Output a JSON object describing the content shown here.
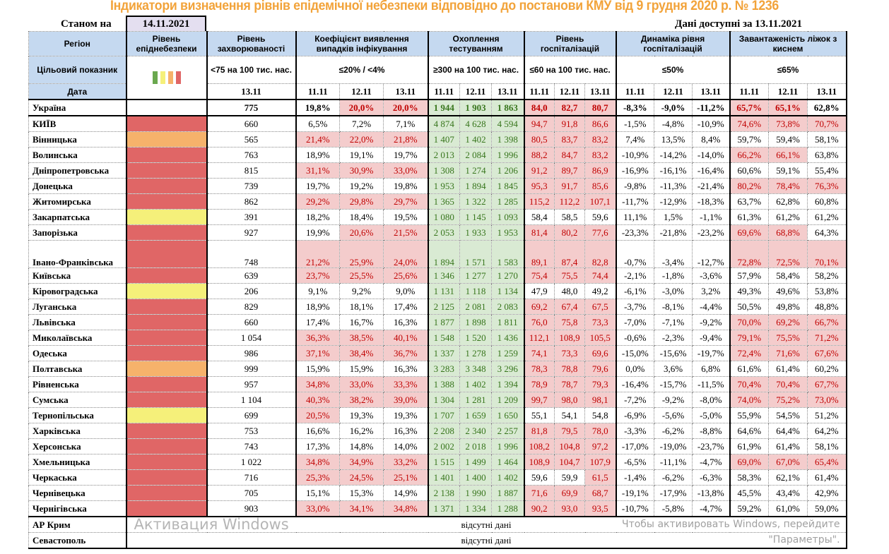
{
  "title": "Індикатори визначення рівнів епідемічної небезпеки відповідно до постанови КМУ від 9 грудня 2020 р. № 1236",
  "as_of_label": "Станом на",
  "as_of_date": "14.11.2021",
  "available_label": "Дані доступні за  13.11.2021",
  "headers": {
    "region": "Регіон",
    "level": "Рівень епіднебезпеки",
    "incidence": "Рівень захворюваності",
    "coef": "Коефіцієнт виявлення випадків інфікування",
    "testing": "Охоплення тестуванням",
    "hosp": "Рівень госпіталізацій",
    "dyn": "Динаміка рівня госпіталізацій",
    "beds": "Завантаженість ліжок з киснем"
  },
  "targets": {
    "label": "Цільовий показник",
    "incidence": "<75 на 100 тис. нас.",
    "coef": "≤20% / <4%",
    "testing": "≥300 на 100 тис. нас.",
    "hosp": "≤60 на 100 тис. нас.",
    "dyn": "≤50%",
    "beds": "≤65%"
  },
  "level_colors": {
    "green": "#6aa84f",
    "yellow": "#f5f07a",
    "orange": "#f6b26b",
    "red": "#e06666"
  },
  "dates": {
    "label": "Дата",
    "incidence": "13.11",
    "triple": [
      "11.11",
      "12.11",
      "13.11"
    ]
  },
  "ukraine": {
    "name": "Україна",
    "inc": "775",
    "coef": [
      "19,8%",
      "20,0%",
      "20,0%"
    ],
    "test": [
      "1 944",
      "1 903",
      "1 863"
    ],
    "hosp": [
      "84,0",
      "82,7",
      "80,7"
    ],
    "dyn": [
      "-8,3%",
      "-9,0%",
      "-11,2%"
    ],
    "beds": [
      "65,7%",
      "65,1%",
      "62,8%"
    ]
  },
  "rows": [
    {
      "name": "КИЇВ",
      "level": "red",
      "inc": "660",
      "coef": [
        "6,5%",
        "7,2%",
        "7,1%"
      ],
      "test": [
        "4 874",
        "4 628",
        "4 594"
      ],
      "hosp": [
        "94,7",
        "91,8",
        "86,6"
      ],
      "dyn": [
        "-1,5%",
        "-4,8%",
        "-10,9%"
      ],
      "beds": [
        "74,6%",
        "73,8%",
        "70,7%"
      ]
    },
    {
      "name": "Вінницька",
      "level": "orange",
      "inc": "565",
      "coef": [
        "21,4%",
        "22,0%",
        "21,8%"
      ],
      "test": [
        "1 407",
        "1 402",
        "1 398"
      ],
      "hosp": [
        "80,5",
        "83,7",
        "83,2"
      ],
      "dyn": [
        "7,4%",
        "13,5%",
        "8,4%"
      ],
      "beds": [
        "59,7%",
        "59,4%",
        "58,1%"
      ]
    },
    {
      "name": "Волинська",
      "level": "red",
      "inc": "763",
      "coef": [
        "18,9%",
        "19,1%",
        "19,7%"
      ],
      "test": [
        "2 013",
        "2 084",
        "1 996"
      ],
      "hosp": [
        "88,2",
        "84,7",
        "83,2"
      ],
      "dyn": [
        "-10,9%",
        "-14,2%",
        "-14,0%"
      ],
      "beds": [
        "66,2%",
        "66,1%",
        "63,8%"
      ]
    },
    {
      "name": "Дніпропетровська",
      "level": "red",
      "inc": "815",
      "coef": [
        "31,1%",
        "30,9%",
        "33,0%"
      ],
      "test": [
        "1 308",
        "1 274",
        "1 206"
      ],
      "hosp": [
        "91,2",
        "89,7",
        "86,9"
      ],
      "dyn": [
        "-16,9%",
        "-16,1%",
        "-16,4%"
      ],
      "beds": [
        "60,6%",
        "59,1%",
        "55,4%"
      ]
    },
    {
      "name": "Донецька",
      "level": "red",
      "inc": "739",
      "coef": [
        "19,7%",
        "19,2%",
        "19,8%"
      ],
      "test": [
        "1 953",
        "1 894",
        "1 845"
      ],
      "hosp": [
        "95,3",
        "91,7",
        "85,6"
      ],
      "dyn": [
        "-9,8%",
        "-11,3%",
        "-21,4%"
      ],
      "beds": [
        "80,2%",
        "78,4%",
        "76,3%"
      ]
    },
    {
      "name": "Житомирська",
      "level": "red",
      "inc": "862",
      "coef": [
        "29,2%",
        "29,8%",
        "29,7%"
      ],
      "test": [
        "1 365",
        "1 322",
        "1 285"
      ],
      "hosp": [
        "115,2",
        "112,2",
        "107,1"
      ],
      "dyn": [
        "-11,7%",
        "-12,9%",
        "-18,3%"
      ],
      "beds": [
        "63,7%",
        "62,8%",
        "60,8%"
      ]
    },
    {
      "name": "Закарпатська",
      "level": "yellow",
      "inc": "391",
      "coef": [
        "18,2%",
        "18,4%",
        "19,5%"
      ],
      "test": [
        "1 080",
        "1 145",
        "1 093"
      ],
      "hosp": [
        "58,4",
        "58,5",
        "59,6"
      ],
      "dyn": [
        "11,1%",
        "1,5%",
        "-1,1%"
      ],
      "beds": [
        "61,3%",
        "61,2%",
        "61,2%"
      ]
    },
    {
      "name": "Запорізька",
      "level": "red",
      "inc": "927",
      "coef": [
        "19,9%",
        "20,6%",
        "21,5%"
      ],
      "test": [
        "2 053",
        "1 933",
        "1 953"
      ],
      "hosp": [
        "81,4",
        "80,2",
        "77,6"
      ],
      "dyn": [
        "-23,3%",
        "-21,8%",
        "-23,2%"
      ],
      "beds": [
        "69,6%",
        "68,8%",
        "64,3%"
      ]
    },
    {
      "name": "Івано-Франківська",
      "level": "red",
      "tall": true,
      "inc": "748",
      "coef": [
        "21,2%",
        "25,9%",
        "24,0%"
      ],
      "test": [
        "1 894",
        "1 571",
        "1 583"
      ],
      "hosp": [
        "89,1",
        "87,4",
        "82,8"
      ],
      "dyn": [
        "-0,7%",
        "-3,4%",
        "-12,7%"
      ],
      "beds": [
        "72,8%",
        "72,5%",
        "70,1%"
      ]
    },
    {
      "name": "Київська",
      "level": "red",
      "inc": "639",
      "coef": [
        "23,7%",
        "25,5%",
        "25,6%"
      ],
      "test": [
        "1 346",
        "1 277",
        "1 270"
      ],
      "hosp": [
        "75,4",
        "75,5",
        "74,4"
      ],
      "dyn": [
        "-2,1%",
        "-1,8%",
        "-3,6%"
      ],
      "beds": [
        "57,9%",
        "58,4%",
        "58,2%"
      ]
    },
    {
      "name": "Кіровоградська",
      "level": "yellow",
      "inc": "206",
      "coef": [
        "9,1%",
        "9,2%",
        "9,0%"
      ],
      "test": [
        "1 131",
        "1 118",
        "1 134"
      ],
      "hosp": [
        "47,9",
        "48,0",
        "49,2"
      ],
      "dyn": [
        "-6,1%",
        "-3,0%",
        "3,2%"
      ],
      "beds": [
        "49,3%",
        "49,6%",
        "53,8%"
      ]
    },
    {
      "name": "Луганська",
      "level": "red",
      "inc": "829",
      "coef": [
        "18,9%",
        "18,1%",
        "17,4%"
      ],
      "test": [
        "2 125",
        "2 081",
        "2 083"
      ],
      "hosp": [
        "69,2",
        "67,4",
        "67,5"
      ],
      "dyn": [
        "-3,7%",
        "-8,1%",
        "-4,4%"
      ],
      "beds": [
        "50,5%",
        "49,8%",
        "48,8%"
      ]
    },
    {
      "name": "Львівська",
      "level": "red",
      "inc": "660",
      "coef": [
        "17,4%",
        "16,7%",
        "16,3%"
      ],
      "test": [
        "1 877",
        "1 898",
        "1 811"
      ],
      "hosp": [
        "76,0",
        "75,8",
        "73,3"
      ],
      "dyn": [
        "-7,0%",
        "-7,1%",
        "-9,2%"
      ],
      "beds": [
        "70,0%",
        "69,2%",
        "66,7%"
      ]
    },
    {
      "name": "Миколаївська",
      "level": "red",
      "inc": "1 054",
      "coef": [
        "36,3%",
        "38,5%",
        "40,1%"
      ],
      "test": [
        "1 548",
        "1 520",
        "1 436"
      ],
      "hosp": [
        "112,1",
        "108,9",
        "105,5"
      ],
      "dyn": [
        "-0,6%",
        "-2,3%",
        "-9,4%"
      ],
      "beds": [
        "79,1%",
        "75,5%",
        "71,2%"
      ]
    },
    {
      "name": "Одеська",
      "level": "red",
      "inc": "986",
      "coef": [
        "37,1%",
        "38,4%",
        "36,7%"
      ],
      "test": [
        "1 337",
        "1 278",
        "1 259"
      ],
      "hosp": [
        "74,1",
        "73,3",
        "69,6"
      ],
      "dyn": [
        "-15,0%",
        "-15,6%",
        "-19,7%"
      ],
      "beds": [
        "72,4%",
        "71,6%",
        "67,6%"
      ]
    },
    {
      "name": "Полтавська",
      "level": "orange",
      "inc": "999",
      "coef": [
        "15,9%",
        "15,9%",
        "16,3%"
      ],
      "test": [
        "3 283",
        "3 348",
        "3 296"
      ],
      "hosp": [
        "78,3",
        "78,8",
        "79,6"
      ],
      "dyn": [
        "0,0%",
        "3,6%",
        "6,8%"
      ],
      "beds": [
        "61,6%",
        "61,4%",
        "60,2%"
      ]
    },
    {
      "name": "Рівненська",
      "level": "red",
      "inc": "957",
      "coef": [
        "34,8%",
        "33,0%",
        "33,3%"
      ],
      "test": [
        "1 388",
        "1 402",
        "1 394"
      ],
      "hosp": [
        "78,9",
        "78,7",
        "79,3"
      ],
      "dyn": [
        "-16,4%",
        "-15,7%",
        "-11,5%"
      ],
      "beds": [
        "70,4%",
        "70,4%",
        "67,7%"
      ]
    },
    {
      "name": "Сумська",
      "level": "red",
      "inc": "1 104",
      "coef": [
        "40,3%",
        "38,2%",
        "39,0%"
      ],
      "test": [
        "1 304",
        "1 281",
        "1 209"
      ],
      "hosp": [
        "99,7",
        "98,0",
        "98,1"
      ],
      "dyn": [
        "-7,2%",
        "-9,2%",
        "-8,0%"
      ],
      "beds": [
        "74,0%",
        "75,2%",
        "73,0%"
      ]
    },
    {
      "name": "Тернопільська",
      "level": "yellow",
      "inc": "699",
      "coef": [
        "20,5%",
        "19,3%",
        "19,3%"
      ],
      "test": [
        "1 707",
        "1 659",
        "1 650"
      ],
      "hosp": [
        "55,1",
        "54,1",
        "54,8"
      ],
      "dyn": [
        "-6,9%",
        "-5,6%",
        "-5,0%"
      ],
      "beds": [
        "55,9%",
        "54,5%",
        "51,2%"
      ]
    },
    {
      "name": "Харківська",
      "level": "red",
      "inc": "753",
      "coef": [
        "16,6%",
        "16,2%",
        "16,3%"
      ],
      "test": [
        "2 208",
        "2 340",
        "2 257"
      ],
      "hosp": [
        "81,8",
        "79,5",
        "78,0"
      ],
      "dyn": [
        "-3,3%",
        "-6,2%",
        "-8,8%"
      ],
      "beds": [
        "64,6%",
        "64,4%",
        "64,2%"
      ]
    },
    {
      "name": "Херсонська",
      "level": "red",
      "inc": "743",
      "coef": [
        "17,3%",
        "14,8%",
        "14,0%"
      ],
      "test": [
        "2 002",
        "2 018",
        "1 996"
      ],
      "hosp": [
        "108,2",
        "104,8",
        "97,2"
      ],
      "dyn": [
        "-17,0%",
        "-19,0%",
        "-23,7%"
      ],
      "beds": [
        "61,9%",
        "61,4%",
        "58,1%"
      ]
    },
    {
      "name": "Хмельницька",
      "level": "red",
      "inc": "1 022",
      "coef": [
        "34,8%",
        "34,9%",
        "33,2%"
      ],
      "test": [
        "1 515",
        "1 499",
        "1 464"
      ],
      "hosp": [
        "108,9",
        "104,7",
        "107,9"
      ],
      "dyn": [
        "-6,5%",
        "-11,1%",
        "-4,7%"
      ],
      "beds": [
        "69,0%",
        "67,0%",
        "65,4%"
      ]
    },
    {
      "name": "Черкаська",
      "level": "red",
      "inc": "716",
      "coef": [
        "25,3%",
        "24,5%",
        "25,1%"
      ],
      "test": [
        "1 401",
        "1 400",
        "1 402"
      ],
      "hosp": [
        "59,6",
        "59,9",
        "61,5"
      ],
      "dyn": [
        "-1,4%",
        "-6,2%",
        "-6,3%"
      ],
      "beds": [
        "58,3%",
        "62,1%",
        "61,4%"
      ]
    },
    {
      "name": "Чернівецька",
      "level": "red",
      "inc": "705",
      "coef": [
        "15,1%",
        "15,3%",
        "14,9%"
      ],
      "test": [
        "2 138",
        "1 990",
        "1 887"
      ],
      "hosp": [
        "71,6",
        "69,9",
        "68,7"
      ],
      "dyn": [
        "-19,1%",
        "-17,9%",
        "-13,8%"
      ],
      "beds": [
        "45,5%",
        "43,4%",
        "42,9%"
      ]
    },
    {
      "name": "Чернігівська",
      "level": "red",
      "inc": "903",
      "coef": [
        "33,0%",
        "34,1%",
        "34,8%"
      ],
      "test": [
        "1 371",
        "1 334",
        "1 288"
      ],
      "hosp": [
        "90,2",
        "93,0",
        "93,5"
      ],
      "dyn": [
        "-10,7%",
        "-5,8%",
        "-4,7%"
      ],
      "beds": [
        "59,2%",
        "61,0%",
        "59,0%"
      ]
    }
  ],
  "missing": [
    {
      "name": "АР Крим",
      "text": "відсутні дані"
    },
    {
      "name": "Севастополь",
      "text": "відсутні дані"
    }
  ],
  "watermark": {
    "line1": "Активация Windows",
    "line2": "Чтобы активировать Windows, перейдите",
    "line3": "\"Параметры\"."
  }
}
